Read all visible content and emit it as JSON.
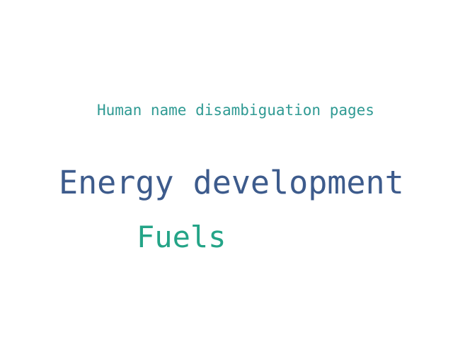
{
  "word_cloud": {
    "words": [
      {
        "text": "Human name disambiguation pages",
        "color": "#2f9a93"
      },
      {
        "text": "Energy development",
        "color": "#3d5b8c"
      },
      {
        "text": "Fuels",
        "color": "#24a487"
      }
    ]
  }
}
